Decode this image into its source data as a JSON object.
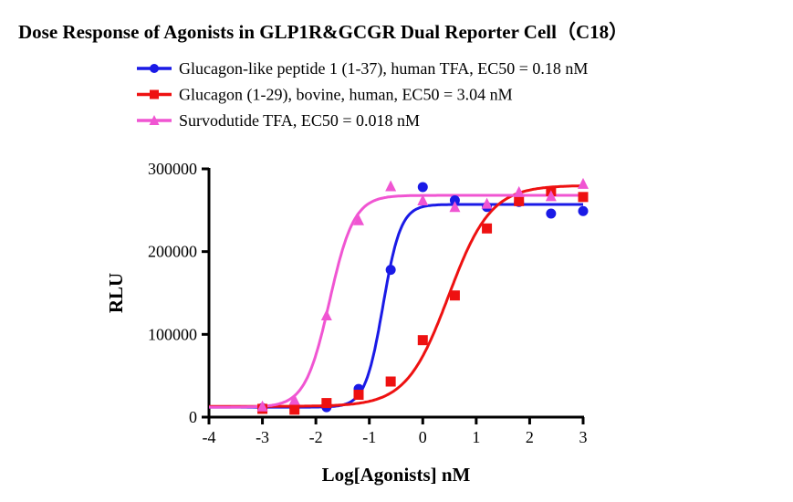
{
  "chart_data": {
    "type": "scatter",
    "title": "Dose Response of Agonists in GLP1R&GCGR Dual Reporter Cell（C18）",
    "xlabel": "Log[Agonists] nM",
    "ylabel": "RLU",
    "xlim": [
      -4,
      3
    ],
    "ylim": [
      0,
      300000
    ],
    "xticks": [
      "-4",
      "-3",
      "-2",
      "-1",
      "0",
      "1",
      "2",
      "3"
    ],
    "yticks": [
      "0",
      "100000",
      "200000",
      "300000"
    ],
    "grid": false,
    "legend_position": "top",
    "x": [
      -3,
      -2.4,
      -1.8,
      -1.2,
      -0.6,
      0,
      0.6,
      1.2,
      1.8,
      2.4,
      3
    ],
    "series": [
      {
        "name": "Glucagon-like peptide 1 (1-37), human TFA, EC50 = 0.18 nM",
        "color": "#1a1ae6",
        "marker": "circle",
        "values": [
          11000,
          11000,
          12000,
          34000,
          178000,
          278000,
          262000,
          254000,
          260000,
          246000,
          249000
        ],
        "fit": {
          "bottom": 12000,
          "top": 257000,
          "ec50_nM": 0.18,
          "hill": 2.6
        }
      },
      {
        "name": "Glucagon (1-29), bovine, human, EC50 = 3.04 nM",
        "color": "#ee1111",
        "marker": "square",
        "values": [
          10000,
          9000,
          17000,
          27000,
          43000,
          93000,
          147000,
          228000,
          261000,
          273000,
          266000
        ],
        "fit": {
          "bottom": 13000,
          "top": 280000,
          "ec50_nM": 3.04,
          "hill": 1.1
        }
      },
      {
        "name": "Survodutide TFA, EC50 = 0.018 nM",
        "color": "#f055d2",
        "marker": "triangle",
        "values": [
          13000,
          21000,
          123000,
          238000,
          279000,
          262000,
          254000,
          258000,
          272000,
          267000,
          282000
        ],
        "fit": {
          "bottom": 12000,
          "top": 268000,
          "ec50_nM": 0.018,
          "hill": 1.9
        }
      }
    ]
  }
}
